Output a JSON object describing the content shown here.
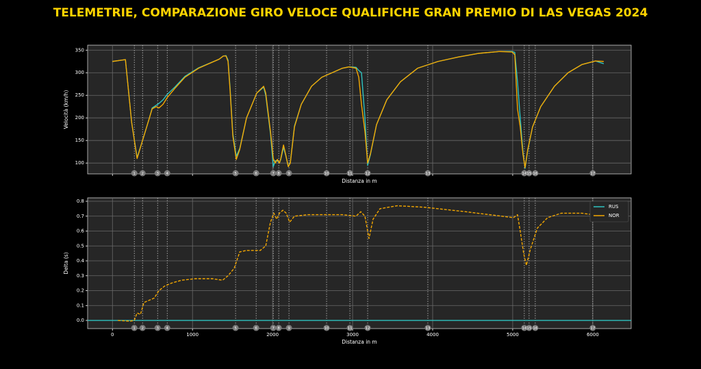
{
  "title": "TELEMETRIE, COMPARAZIONE GIRO VELOCE QUALIFICHE GRAN PREMIO DI LAS VEGAS 2024",
  "chart_data": [
    {
      "type": "line",
      "xlabel": "Distanza in m",
      "ylabel": "Velocità (km/h)",
      "xlim": [
        -310,
        6480
      ],
      "ylim": [
        76,
        361
      ],
      "xticks": [
        0,
        1000,
        2000,
        3000,
        4000,
        5000,
        6000
      ],
      "xtick_labels": false,
      "yticks": [
        100,
        150,
        200,
        250,
        300,
        350
      ],
      "grid": true,
      "corners": [
        {
          "label": "1",
          "x": 273
        },
        {
          "label": "2",
          "x": 376
        },
        {
          "label": "3",
          "x": 564
        },
        {
          "label": "4",
          "x": 684
        },
        {
          "label": "5",
          "x": 1538
        },
        {
          "label": "6",
          "x": 1795
        },
        {
          "label": "7",
          "x": 2009
        },
        {
          "label": "8",
          "x": 2077
        },
        {
          "label": "9",
          "x": 2205
        },
        {
          "label": "10",
          "x": 2675
        },
        {
          "label": "11",
          "x": 2966
        },
        {
          "label": "12",
          "x": 3188
        },
        {
          "label": "13",
          "x": 3940
        },
        {
          "label": "14",
          "x": 5145
        },
        {
          "label": "15",
          "x": 5205
        },
        {
          "label": "16",
          "x": 5282
        },
        {
          "label": "17",
          "x": 6000
        }
      ],
      "series": [
        {
          "name": "RUS",
          "color": "#2ec4c0",
          "dash": false,
          "x": [
            0,
            162,
            240,
            308,
            376,
            462,
            496,
            547,
            581,
            632,
            684,
            778,
            906,
            1077,
            1333,
            1385,
            1419,
            1444,
            1470,
            1504,
            1547,
            1590,
            1675,
            1803,
            1889,
            1915,
            1974,
            2009,
            2034,
            2060,
            2086,
            2103,
            2137,
            2163,
            2197,
            2222,
            2274,
            2359,
            2487,
            2615,
            2744,
            2872,
            2957,
            3043,
            3077,
            3111,
            3154,
            3188,
            3222,
            3299,
            3427,
            3598,
            3812,
            4068,
            4325,
            4581,
            4838,
            4991,
            5026,
            5060,
            5094,
            5128,
            5154,
            5188,
            5248,
            5350,
            5521,
            5692,
            5863,
            6034,
            6137
          ],
          "values": [
            325,
            329,
            190,
            112,
            150,
            200,
            222,
            228,
            232,
            240,
            252,
            268,
            292,
            311,
            330,
            337,
            338,
            328,
            265,
            165,
            115,
            132,
            200,
            255,
            268,
            250,
            165,
            92,
            105,
            105,
            100,
            108,
            135,
            118,
            92,
            102,
            182,
            230,
            270,
            290,
            300,
            310,
            313,
            312,
            305,
            300,
            200,
            95,
            118,
            185,
            240,
            280,
            310,
            325,
            335,
            343,
            347,
            347,
            345,
            280,
            200,
            125,
            88,
            128,
            180,
            225,
            270,
            300,
            318,
            326,
            320
          ]
        },
        {
          "name": "NOR",
          "color": "#f5a800",
          "dash": false,
          "x": [
            0,
            162,
            240,
            308,
            376,
            462,
            496,
            547,
            581,
            632,
            684,
            778,
            906,
            1077,
            1333,
            1385,
            1419,
            1444,
            1470,
            1504,
            1547,
            1590,
            1675,
            1803,
            1889,
            1915,
            1974,
            2009,
            2034,
            2060,
            2086,
            2103,
            2137,
            2163,
            2197,
            2222,
            2274,
            2359,
            2487,
            2615,
            2744,
            2872,
            2957,
            3043,
            3077,
            3111,
            3154,
            3188,
            3222,
            3299,
            3427,
            3598,
            3812,
            4068,
            4325,
            4581,
            4838,
            4991,
            5026,
            5060,
            5094,
            5128,
            5154,
            5188,
            5248,
            5350,
            5521,
            5692,
            5863,
            6034,
            6137
          ],
          "values": [
            325,
            329,
            190,
            110,
            150,
            200,
            220,
            225,
            222,
            230,
            245,
            265,
            290,
            310,
            330,
            337,
            337,
            325,
            260,
            160,
            108,
            130,
            200,
            255,
            270,
            255,
            170,
            110,
            100,
            108,
            100,
            110,
            140,
            120,
            92,
            100,
            180,
            230,
            270,
            290,
            300,
            310,
            313,
            310,
            290,
            230,
            170,
            100,
            120,
            185,
            240,
            280,
            310,
            325,
            335,
            343,
            347,
            346,
            340,
            220,
            180,
            120,
            90,
            130,
            180,
            225,
            270,
            300,
            318,
            326,
            325
          ]
        }
      ]
    },
    {
      "type": "line",
      "xlabel": "Distanza in m",
      "ylabel": "Delta (s)",
      "xlim": [
        -310,
        6480
      ],
      "ylim": [
        -0.055,
        0.823
      ],
      "xticks": [
        0,
        1000,
        2000,
        3000,
        4000,
        5000,
        6000
      ],
      "xtick_labels": true,
      "yticks": [
        {
          "value": 0,
          "label": "0.0"
        },
        0.1,
        0.2,
        0.3,
        0.4,
        0.5,
        0.6,
        0.7,
        0.8
      ],
      "grid": true,
      "legend": "upper right",
      "corners": [
        {
          "label": "1",
          "x": 273
        },
        {
          "label": "2",
          "x": 376
        },
        {
          "label": "3",
          "x": 564
        },
        {
          "label": "4",
          "x": 684
        },
        {
          "label": "5",
          "x": 1538
        },
        {
          "label": "6",
          "x": 1795
        },
        {
          "label": "7",
          "x": 2009
        },
        {
          "label": "8",
          "x": 2077
        },
        {
          "label": "9",
          "x": 2205
        },
        {
          "label": "10",
          "x": 2675
        },
        {
          "label": "11",
          "x": 2966
        },
        {
          "label": "12",
          "x": 3188
        },
        {
          "label": "13",
          "x": 3940
        },
        {
          "label": "14",
          "x": 5145
        },
        {
          "label": "15",
          "x": 5205
        },
        {
          "label": "16",
          "x": 5282
        },
        {
          "label": "17",
          "x": 6000
        }
      ],
      "series": [
        {
          "name": "RUS",
          "color": "#2ec4c0",
          "dash": false,
          "x": [
            -310,
            6480
          ],
          "values": [
            0,
            0
          ]
        },
        {
          "name": "NOR",
          "color": "#f5a800",
          "dash": true,
          "x": [
            68,
            222,
            273,
            308,
            350,
            393,
            479,
            521,
            581,
            650,
            735,
            863,
            1034,
            1248,
            1376,
            1444,
            1521,
            1590,
            1675,
            1846,
            1915,
            1974,
            2017,
            2051,
            2086,
            2129,
            2171,
            2214,
            2274,
            2444,
            2872,
            3043,
            3102,
            3154,
            3205,
            3256,
            3342,
            3556,
            3897,
            4410,
            5009,
            5060,
            5094,
            5137,
            5171,
            5222,
            5308,
            5436,
            5607,
            5863,
            6000,
            6120
          ],
          "values": [
            0,
            -0.005,
            0,
            0.05,
            0.04,
            0.12,
            0.14,
            0.15,
            0.2,
            0.23,
            0.25,
            0.27,
            0.28,
            0.28,
            0.27,
            0.3,
            0.35,
            0.46,
            0.47,
            0.47,
            0.5,
            0.66,
            0.72,
            0.68,
            0.72,
            0.74,
            0.72,
            0.66,
            0.7,
            0.71,
            0.71,
            0.7,
            0.73,
            0.7,
            0.55,
            0.68,
            0.75,
            0.77,
            0.76,
            0.73,
            0.69,
            0.71,
            0.6,
            0.45,
            0.37,
            0.48,
            0.62,
            0.69,
            0.72,
            0.72,
            0.71,
            0.71
          ]
        }
      ]
    }
  ]
}
